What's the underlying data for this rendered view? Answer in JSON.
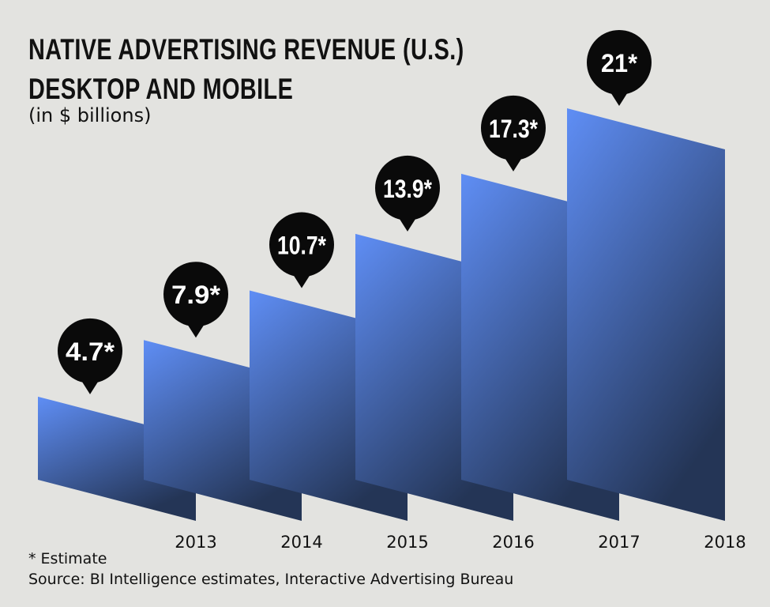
{
  "title_line1": "NATIVE ADVERTISING REVENUE (U.S.)",
  "title_line2": "DESKTOP AND MOBILE",
  "subtitle": "(in $ billions)",
  "footnote": "* Estimate",
  "source": "Source: BI Intelligence estimates, Interactive Advertising Bureau",
  "colors": {
    "bar_top": "#5f8ef5",
    "bar_bottom": "#243556",
    "bubble": "#0a0a0a",
    "background": "#e3e3e0"
  },
  "chart_data": {
    "type": "bar",
    "categories": [
      "2013",
      "2014",
      "2015",
      "2016",
      "2017",
      "2018"
    ],
    "values": [
      4.7,
      7.9,
      10.7,
      13.9,
      17.3,
      21
    ],
    "value_labels": [
      "4.7*",
      "7.9*",
      "10.7*",
      "13.9*",
      "17.3*",
      "21*"
    ],
    "xlabel": "",
    "ylabel": "",
    "ylim": [
      0,
      21
    ],
    "grid": false,
    "legend": "none"
  }
}
